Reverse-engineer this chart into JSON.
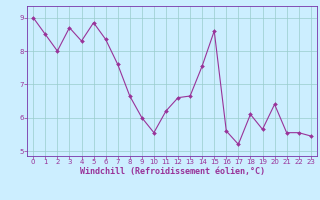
{
  "x": [
    0,
    1,
    2,
    3,
    4,
    5,
    6,
    7,
    8,
    9,
    10,
    11,
    12,
    13,
    14,
    15,
    16,
    17,
    18,
    19,
    20,
    21,
    22,
    23
  ],
  "y": [
    9.0,
    8.5,
    8.0,
    8.7,
    8.3,
    8.85,
    8.35,
    7.6,
    6.65,
    6.0,
    5.55,
    6.2,
    6.6,
    6.65,
    7.55,
    8.6,
    5.6,
    5.2,
    6.1,
    5.65,
    6.4,
    5.55,
    5.55,
    5.45
  ],
  "line_color": "#993399",
  "marker": "D",
  "marker_size": 2.0,
  "bg_color": "#cceeff",
  "grid_color": "#99cccc",
  "ylim": [
    4.85,
    9.35
  ],
  "yticks": [
    5,
    6,
    7,
    8,
    9
  ],
  "xlim": [
    -0.5,
    23.5
  ],
  "xticks": [
    0,
    1,
    2,
    3,
    4,
    5,
    6,
    7,
    8,
    9,
    10,
    11,
    12,
    13,
    14,
    15,
    16,
    17,
    18,
    19,
    20,
    21,
    22,
    23
  ],
  "xlabel": "Windchill (Refroidissement éolien,°C)",
  "tick_fontsize": 5.0,
  "xlabel_fontsize": 6.0,
  "axis_color": "#7733aa",
  "tick_color": "#993399",
  "line_width": 0.8
}
